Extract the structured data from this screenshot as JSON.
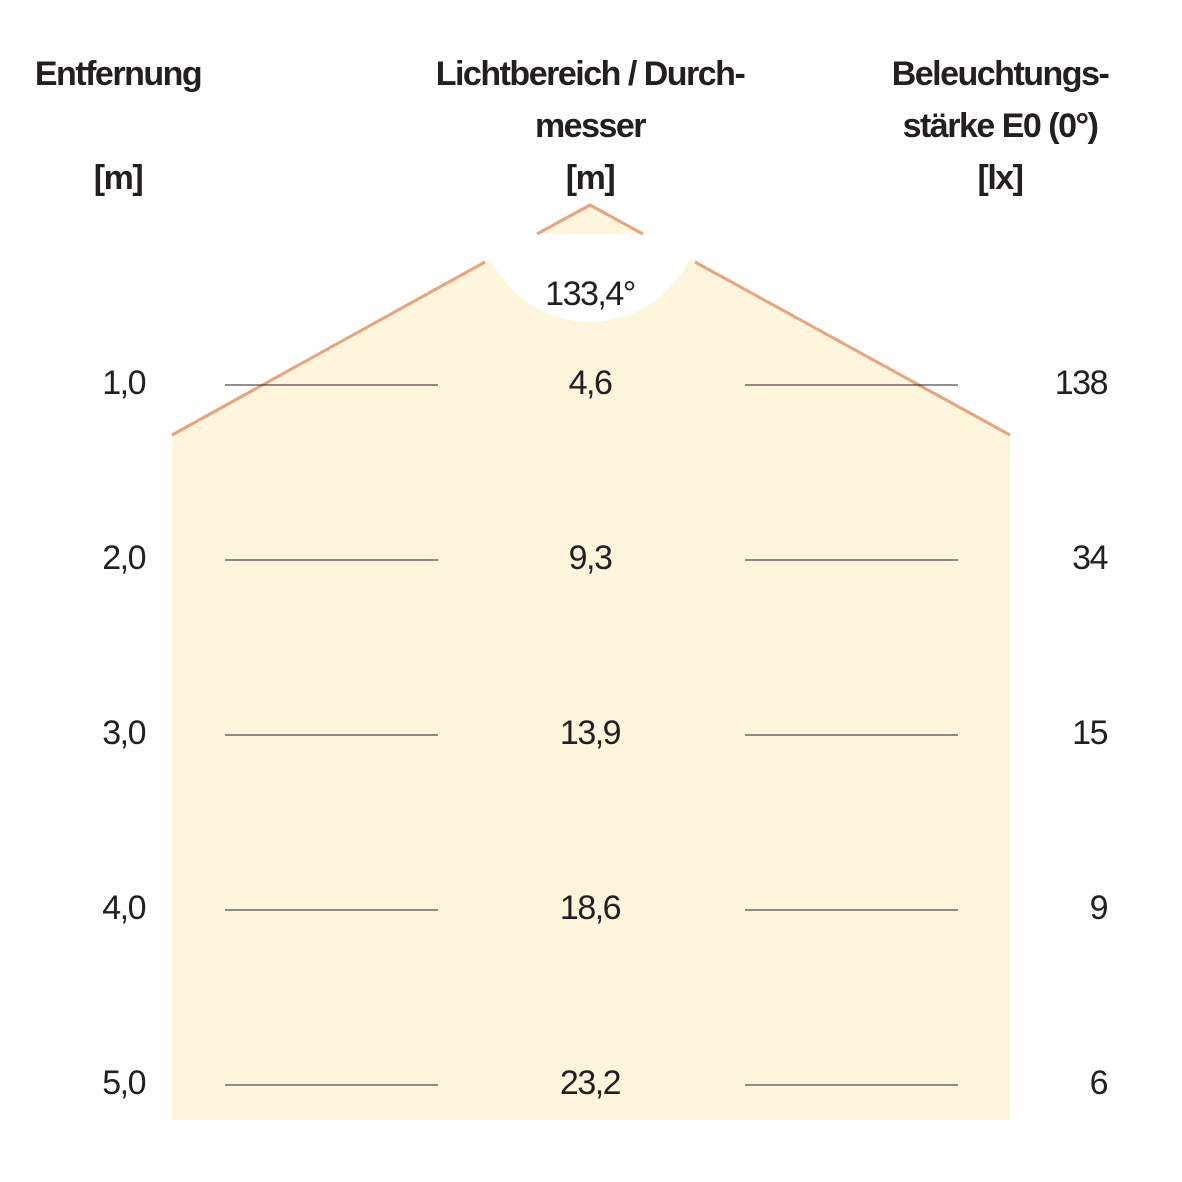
{
  "headers": {
    "distance": {
      "lines": [
        "Entfernung"
      ],
      "unit": "[m]"
    },
    "diameter": {
      "lines": [
        "Lichtbereich / Durch-",
        "messer"
      ],
      "unit": "[m]"
    },
    "illuminance": {
      "lines": [
        "Beleuchtungs-",
        "stärke E0 (0°)"
      ],
      "unit": "[lx]"
    }
  },
  "angle": "133,4°",
  "rows": [
    {
      "distance": "1,0",
      "diameter": "4,6",
      "illuminance": "138"
    },
    {
      "distance": "2,0",
      "diameter": "9,3",
      "illuminance": "34"
    },
    {
      "distance": "3,0",
      "diameter": "13,9",
      "illuminance": "15"
    },
    {
      "distance": "4,0",
      "diameter": "18,6",
      "illuminance": "9"
    },
    {
      "distance": "5,0",
      "diameter": "23,2",
      "illuminance": "6"
    }
  ]
}
